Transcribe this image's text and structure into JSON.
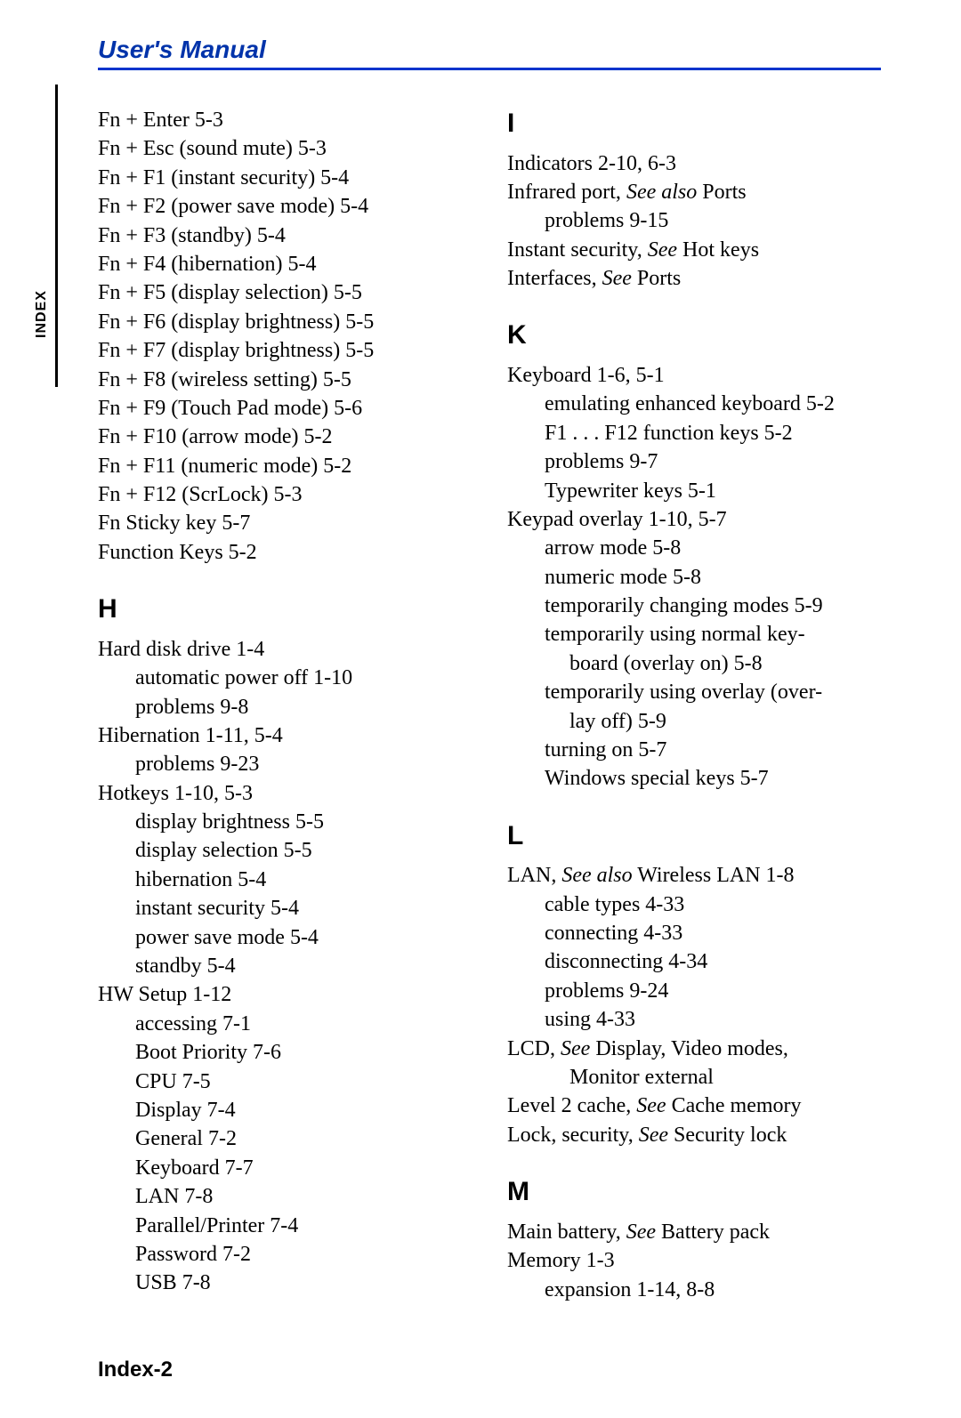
{
  "colors": {
    "header_text": "#0033aa",
    "header_rule": "#0033cc",
    "body_text": "#000000",
    "background": "#ffffff"
  },
  "typography": {
    "header_font": "Arial",
    "header_fontsize_pt": 21,
    "header_weight": "bold",
    "header_style": "italic",
    "body_font": "Times New Roman",
    "body_fontsize_pt": 18,
    "letter_font": "Arial",
    "letter_fontsize_pt": 22,
    "letter_weight": "bold",
    "tab_font": "Arial",
    "tab_fontsize_pt": 12,
    "footer_font": "Arial",
    "footer_fontsize_pt": 18,
    "footer_weight": "bold"
  },
  "header": "User's Manual",
  "tab_label": "INDEX",
  "footer": "Index-2",
  "left_col": {
    "fn_entries": [
      "Fn + Enter  5-3",
      "Fn + Esc (sound mute)  5-3",
      "Fn + F1 (instant security)  5-4",
      "Fn + F2 (power save mode)  5-4",
      "Fn + F3 (standby)  5-4",
      "Fn + F4 (hibernation)  5-4",
      "Fn + F5 (display selection)  5-5",
      "Fn + F6 (display brightness)  5-5",
      "Fn + F7 (display brightness)  5-5",
      "Fn + F8 (wireless setting)  5-5",
      "Fn + F9 (Touch Pad mode)  5-6",
      "Fn + F10 (arrow mode)  5-2",
      "Fn + F11 (numeric mode)  5-2",
      "Fn + F12 (ScrLock)  5-3",
      "Fn Sticky key  5-7",
      "Function Keys  5-2"
    ],
    "H": "H",
    "h_entries": {
      "hdd": "Hard disk drive  1-4",
      "hdd_auto": "automatic power off  1-10",
      "hdd_prob": "problems  9-8",
      "hib": "Hibernation  1-11, 5-4",
      "hib_prob": "problems  9-23",
      "hk": "Hotkeys  1-10, 5-3",
      "hk_bright": "display brightness  5-5",
      "hk_sel": "display selection  5-5",
      "hk_hib": "hibernation  5-4",
      "hk_sec": "instant security  5-4",
      "hk_psm": "power save mode  5-4",
      "hk_stb": "standby  5-4",
      "hw": "HW Setup  1-12",
      "hw_acc": "accessing  7-1",
      "hw_boot": "Boot Priority  7-6",
      "hw_cpu": "CPU  7-5",
      "hw_disp": "Display  7-4",
      "hw_gen": "General  7-2",
      "hw_kb": "Keyboard  7-7",
      "hw_lan": "LAN  7-8",
      "hw_pp": "Parallel/Printer  7-4",
      "hw_pw": "Password  7-2",
      "hw_usb": "USB  7-8"
    }
  },
  "right_col": {
    "I": "I",
    "i_entries": {
      "ind": "Indicators  2-10, 6-3",
      "ir_a": "Infrared port, ",
      "ir_see": "See also",
      "ir_b": " Ports",
      "ir_prob": "problems  9-15",
      "isec_a": "Instant security, ",
      "isec_see": "See",
      "isec_b": " Hot keys",
      "ifc_a": "Interfaces, ",
      "ifc_see": "See",
      "ifc_b": " Ports"
    },
    "K": "K",
    "k_entries": {
      "kb": "Keyboard  1-6, 5-1",
      "kb_em": "emulating enhanced keyboard  5-2",
      "kb_fn": "F1 . . . F12 function keys  5-2",
      "kb_prob": "problems  9-7",
      "kb_tw": "Typewriter keys  5-1",
      "kpo": "Keypad overlay  1-10, 5-7",
      "kpo_am": "arrow mode  5-8",
      "kpo_nm": "numeric mode  5-8",
      "kpo_tcm": "temporarily changing modes  5-9",
      "kpo_tnk1": "temporarily using normal key-",
      "kpo_tnk2": "board (overlay on)  5-8",
      "kpo_tov1": "temporarily using overlay (over-",
      "kpo_tov2": "lay off)  5-9",
      "kpo_on": "turning on  5-7",
      "kpo_win": "Windows special keys  5-7"
    },
    "L": "L",
    "l_entries": {
      "lan_a": "LAN, ",
      "lan_see": "See also",
      "lan_b": " Wireless LAN  1-8",
      "lan_ct": "cable types  4-33",
      "lan_cn": "connecting  4-33",
      "lan_dc": "disconnecting  4-34",
      "lan_prob": "problems  9-24",
      "lan_use": "using  4-33",
      "lcd_a": "LCD, ",
      "lcd_see": "See",
      "lcd_b": " Display, Video modes,",
      "lcd_c": "Monitor external",
      "l2_a": "Level 2 cache, ",
      "l2_see": "See",
      "l2_b": " Cache memory",
      "lock_a": "Lock, security, ",
      "lock_see": "See",
      "lock_b": " Security lock"
    },
    "M": "M",
    "m_entries": {
      "mb_a": "Main battery, ",
      "mb_see": "See",
      "mb_b": " Battery pack",
      "mem": "Memory  1-3",
      "mem_exp": "expansion  1-14, 8-8"
    }
  }
}
